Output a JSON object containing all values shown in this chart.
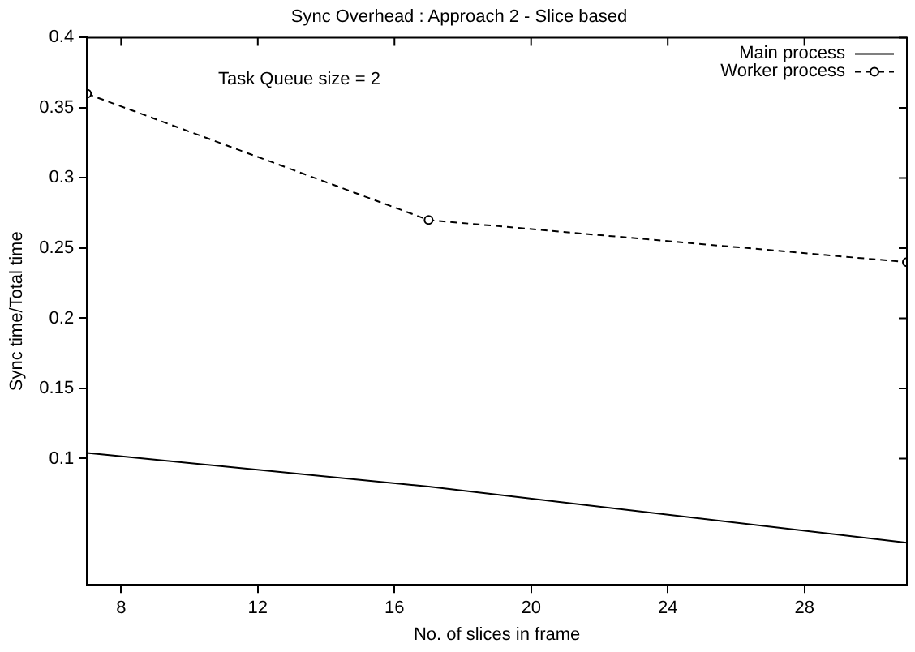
{
  "chart_data": {
    "type": "line",
    "title": "Sync Overhead : Approach 2 - Slice based",
    "xlabel": "No. of slices in frame",
    "ylabel": "Sync time/Total time",
    "annotations": [
      "Task Queue size = 2"
    ],
    "x": [
      7,
      17,
      31
    ],
    "series": [
      {
        "name": "Main process",
        "color": "#000000",
        "values": [
          0.104,
          0.08,
          0.04
        ],
        "marker": "none",
        "line_style": "solid"
      },
      {
        "name": "Worker process",
        "color": "#000000",
        "values": [
          0.36,
          0.27,
          0.24
        ],
        "marker": "circle",
        "line_style": "dashed"
      }
    ],
    "xlim": [
      7,
      31
    ],
    "xticks": [
      8,
      12,
      16,
      20,
      24,
      28
    ],
    "ylim": [
      0.01,
      0.4
    ],
    "yticks": [
      0.1,
      0.15,
      0.2,
      0.25,
      0.3,
      0.35,
      0.4
    ],
    "grid": false,
    "legend": "top right"
  }
}
